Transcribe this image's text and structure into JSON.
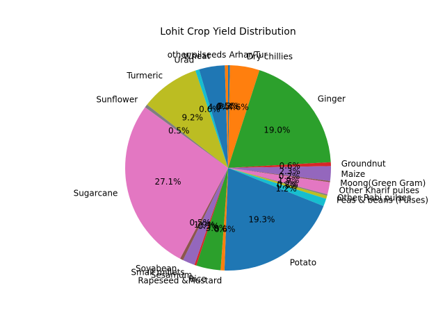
{
  "chart_data": {
    "type": "pie",
    "title": "Lohit Crop Yield Distribution",
    "start_angle_deg": 90,
    "direction": "clockwise",
    "slices": [
      {
        "label": "Arhar/Tur",
        "pct_label": "0.3%",
        "value": 0.3,
        "color": "#1f77b4"
      },
      {
        "label": "Dry chillies",
        "pct_label": "4.6%",
        "value": 4.6,
        "color": "#ff7f0e"
      },
      {
        "label": "Ginger",
        "pct_label": "19.0%",
        "value": 19.0,
        "color": "#2ca02c"
      },
      {
        "label": "Groundnut",
        "pct_label": "0.6%",
        "value": 0.6,
        "color": "#d62728"
      },
      {
        "label": "Maize",
        "pct_label": "2.3%",
        "value": 2.3,
        "color": "#9467bd"
      },
      {
        "label": "Moong(Green Gram)",
        "pct_label": "0.2%",
        "value": 0.2,
        "color": "#8c564b"
      },
      {
        "label": "Other Kharif pulses",
        "pct_label": "1.9%",
        "value": 1.9,
        "color": "#e377c2"
      },
      {
        "label": "Other Rabi pulses",
        "pct_label": "0.2%",
        "value": 0.2,
        "color": "#7f7f7f"
      },
      {
        "label": "Peas & beans (Pulses)",
        "pct_label": "0.5%",
        "value": 0.5,
        "color": "#bcbd22"
      },
      {
        "label": "",
        "pct_label": "1.2%",
        "value": 1.2,
        "color": "#17becf"
      },
      {
        "label": "Potato",
        "pct_label": "19.3%",
        "value": 19.3,
        "color": "#1f77b4"
      },
      {
        "label": "Rapeseed &Mustard",
        "pct_label": "0.6%",
        "value": 0.6,
        "color": "#ff7f0e"
      },
      {
        "label": "Rice",
        "pct_label": "3.8%",
        "value": 3.8,
        "color": "#2ca02c"
      },
      {
        "label": "Sesamum",
        "pct_label": "0.3%",
        "value": 0.3,
        "color": "#d62728"
      },
      {
        "label": "Small millets",
        "pct_label": "1.9%",
        "value": 1.9,
        "color": "#9467bd"
      },
      {
        "label": "Soyabean",
        "pct_label": "0.5%",
        "value": 0.5,
        "color": "#8c564b"
      },
      {
        "label": "Sugarcane",
        "pct_label": "27.1%",
        "value": 27.1,
        "color": "#e377c2"
      },
      {
        "label": "Sunflower",
        "pct_label": "0.5%",
        "value": 0.5,
        "color": "#7f7f7f"
      },
      {
        "label": "Turmeric",
        "pct_label": "9.2%",
        "value": 9.2,
        "color": "#bcbd22"
      },
      {
        "label": "Urad",
        "pct_label": "0.6%",
        "value": 0.6,
        "color": "#17becf"
      },
      {
        "label": "Wheat",
        "pct_label": "4.0%",
        "value": 4.0,
        "color": "#1f77b4"
      },
      {
        "label": "other oilseeds",
        "pct_label": "0.5%",
        "value": 0.5,
        "color": "#ff7f0e"
      }
    ]
  }
}
